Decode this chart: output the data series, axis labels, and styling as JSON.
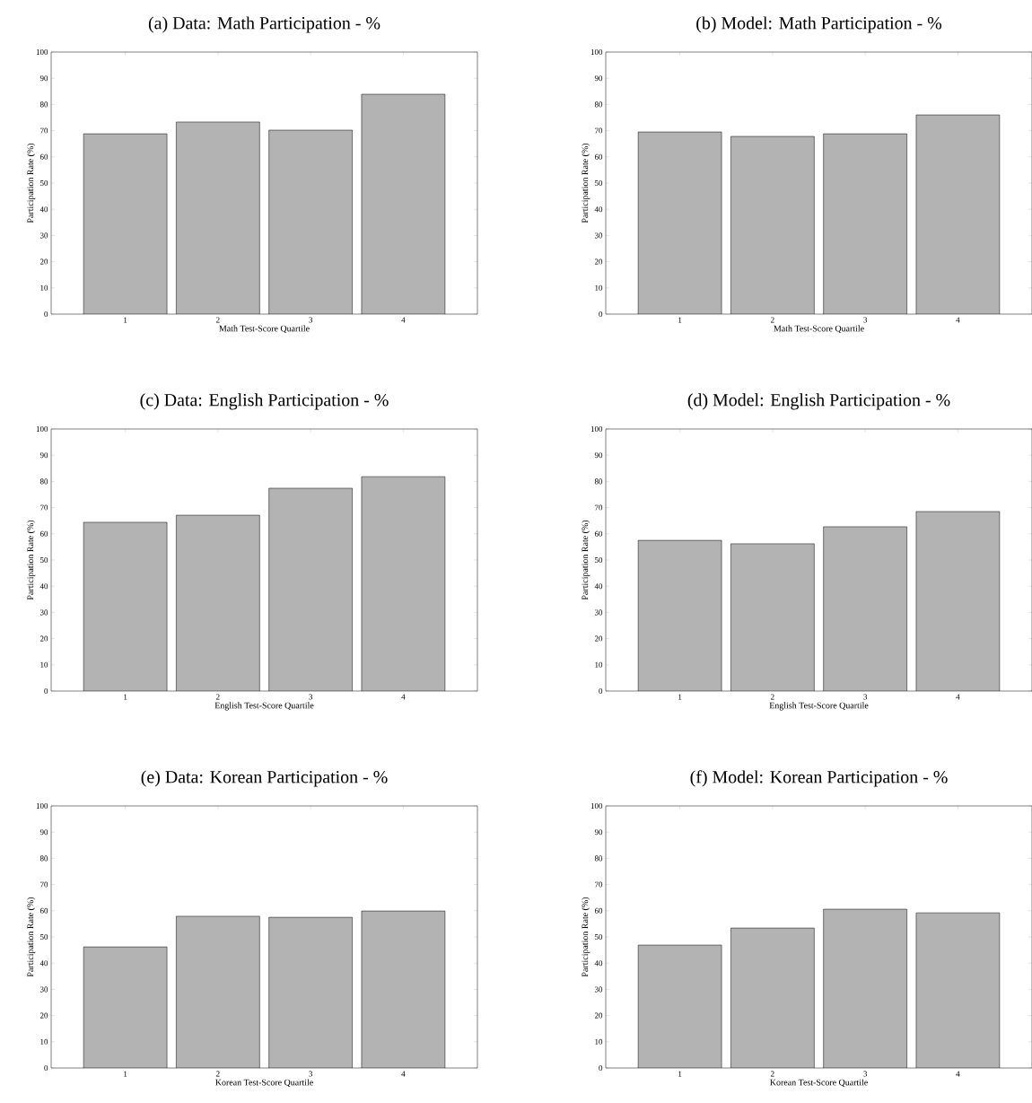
{
  "chart_data": [
    {
      "type": "bar",
      "title": "(a) Data: Math Participation - %",
      "xlabel": "Math Test-Score Quartile",
      "ylabel": "Participation Rate (%)",
      "categories": [
        "1",
        "2",
        "3",
        "4"
      ],
      "values": [
        68.8,
        73.3,
        70.2,
        83.9
      ],
      "color": "#b3b3b3",
      "ylim": [
        0,
        100
      ],
      "yticks": [
        0,
        10,
        20,
        30,
        40,
        50,
        60,
        70,
        80,
        90,
        100
      ]
    },
    {
      "type": "bar",
      "title": "(b) Model: Math Participation - %",
      "xlabel": "Math Test-Score Quartile",
      "ylabel": "Participation Rate (%)",
      "categories": [
        "1",
        "2",
        "3",
        "4"
      ],
      "values": [
        69.5,
        67.8,
        68.8,
        76.0
      ],
      "color": "#b3b3b3",
      "ylim": [
        0,
        100
      ],
      "yticks": [
        0,
        10,
        20,
        30,
        40,
        50,
        60,
        70,
        80,
        90,
        100
      ]
    },
    {
      "type": "bar",
      "title": "(c) Data: English Participation - %",
      "xlabel": "English Test-Score Quartile",
      "ylabel": "Participation Rate (%)",
      "categories": [
        "1",
        "2",
        "3",
        "4"
      ],
      "values": [
        64.4,
        67.1,
        77.4,
        81.8
      ],
      "color": "#b3b3b3",
      "ylim": [
        0,
        100
      ],
      "yticks": [
        0,
        10,
        20,
        30,
        40,
        50,
        60,
        70,
        80,
        90,
        100
      ]
    },
    {
      "type": "bar",
      "title": "(d) Model: English Participation - %",
      "xlabel": "English Test-Score Quartile",
      "ylabel": "Participation Rate (%)",
      "categories": [
        "1",
        "2",
        "3",
        "4"
      ],
      "values": [
        57.5,
        56.2,
        62.7,
        68.5
      ],
      "color": "#b3b3b3",
      "ylim": [
        0,
        100
      ],
      "yticks": [
        0,
        10,
        20,
        30,
        40,
        50,
        60,
        70,
        80,
        90,
        100
      ]
    },
    {
      "type": "bar",
      "title": "(e) Data: Korean Participation - %",
      "xlabel": "Korean Test-Score Quartile",
      "ylabel": "Participation Rate (%)",
      "categories": [
        "1",
        "2",
        "3",
        "4"
      ],
      "values": [
        46.2,
        57.9,
        57.5,
        59.9
      ],
      "color": "#b3b3b3",
      "ylim": [
        0,
        100
      ],
      "yticks": [
        0,
        10,
        20,
        30,
        40,
        50,
        60,
        70,
        80,
        90,
        100
      ]
    },
    {
      "type": "bar",
      "title": "(f) Model: Korean Participation - %",
      "xlabel": "Korean Test-Score Quartile",
      "ylabel": "Participation Rate (%)",
      "categories": [
        "1",
        "2",
        "3",
        "4"
      ],
      "values": [
        46.9,
        53.4,
        60.6,
        59.2
      ],
      "color": "#b3b3b3",
      "ylim": [
        0,
        100
      ],
      "yticks": [
        0,
        10,
        20,
        30,
        40,
        50,
        60,
        70,
        80,
        90,
        100
      ]
    }
  ]
}
